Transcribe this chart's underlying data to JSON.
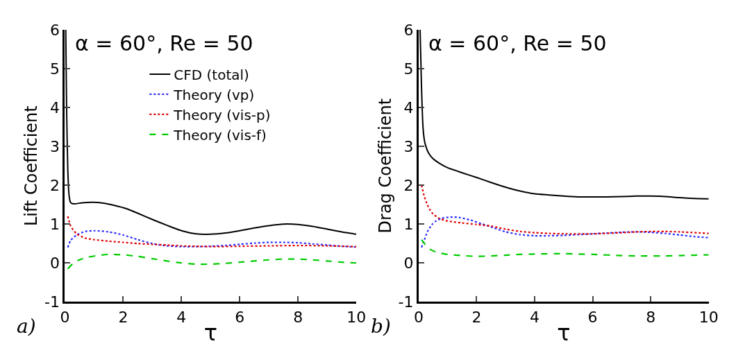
{
  "chart_data": [
    {
      "type": "line",
      "xlabel": "τ",
      "ylabel": "Lift Coefficient",
      "xlim": [
        0,
        10
      ],
      "ylim": [
        -1,
        6
      ],
      "xticks": [
        0,
        2,
        4,
        6,
        8,
        10
      ],
      "yticks": [
        -1,
        0,
        1,
        2,
        3,
        4,
        5,
        6
      ],
      "legend": "top",
      "marker": "none",
      "annotations": [
        "α = 60°, Re = 50",
        "a)"
      ],
      "series": [
        {
          "name": "CFD (total)",
          "color": "#000000",
          "line_style": "solid",
          "x": [
            0.03,
            0.06,
            0.1,
            0.15,
            0.2,
            0.3,
            0.6,
            1,
            1.4,
            1.7,
            2.1,
            2.5,
            3,
            3.5,
            4,
            4.5,
            5,
            5.5,
            6,
            6.5,
            7,
            7.5,
            8,
            8.5,
            9,
            9.5,
            10
          ],
          "values": [
            6,
            4,
            2.4,
            1.7,
            1.55,
            1.52,
            1.55,
            1.56,
            1.53,
            1.48,
            1.4,
            1.28,
            1.12,
            0.97,
            0.83,
            0.75,
            0.74,
            0.77,
            0.83,
            0.9,
            0.96,
            1.0,
            0.99,
            0.94,
            0.87,
            0.8,
            0.74
          ]
        },
        {
          "name": "Theory (vp)",
          "color": "#2b2bff",
          "line_style": "dotted",
          "x": [
            0.1,
            0.2,
            0.4,
            0.7,
            1,
            1.5,
            2,
            2.5,
            3,
            3.5,
            4,
            4.5,
            5,
            5.5,
            6,
            6.5,
            7,
            7.5,
            8,
            8.5,
            9,
            9.5,
            10
          ],
          "values": [
            0.4,
            0.58,
            0.72,
            0.81,
            0.83,
            0.8,
            0.72,
            0.6,
            0.5,
            0.44,
            0.42,
            0.42,
            0.43,
            0.45,
            0.48,
            0.51,
            0.53,
            0.53,
            0.52,
            0.49,
            0.46,
            0.43,
            0.41
          ]
        },
        {
          "name": "Theory (vis-p)",
          "color": "#e00000",
          "line_style": "dotted",
          "x": [
            0.1,
            0.2,
            0.4,
            0.7,
            1,
            1.5,
            2,
            2.5,
            3,
            3.5,
            4,
            5,
            6,
            7,
            8,
            9,
            10
          ],
          "values": [
            1.2,
            0.95,
            0.75,
            0.64,
            0.6,
            0.56,
            0.53,
            0.5,
            0.48,
            0.46,
            0.44,
            0.42,
            0.43,
            0.44,
            0.45,
            0.44,
            0.42
          ]
        },
        {
          "name": "Theory (vis-f)",
          "color": "#00cc00",
          "line_style": "dashed",
          "x": [
            0.1,
            0.3,
            0.5,
            0.8,
            1.2,
            1.5,
            2,
            2.5,
            3,
            3.5,
            4,
            4.5,
            5,
            5.5,
            6,
            6.5,
            7,
            7.5,
            8,
            8.5,
            9,
            9.5,
            10
          ],
          "values": [
            -0.15,
            0.0,
            0.08,
            0.15,
            0.2,
            0.22,
            0.21,
            0.17,
            0.11,
            0.05,
            0.0,
            -0.03,
            -0.03,
            -0.01,
            0.02,
            0.05,
            0.08,
            0.1,
            0.1,
            0.08,
            0.05,
            0.02,
            0.0
          ]
        }
      ]
    },
    {
      "type": "line",
      "xlabel": "τ",
      "ylabel": "Drag Coefficient",
      "xlim": [
        0,
        10
      ],
      "ylim": [
        -1,
        6
      ],
      "xticks": [
        0,
        2,
        4,
        6,
        8,
        10
      ],
      "yticks": [
        -1,
        0,
        1,
        2,
        3,
        4,
        5,
        6
      ],
      "marker": "none",
      "annotations": [
        "α = 60°, Re = 50",
        "b)"
      ],
      "series": [
        {
          "color": "#000000",
          "line_style": "solid",
          "x": [
            0.05,
            0.1,
            0.15,
            0.2,
            0.25,
            0.35,
            0.5,
            0.75,
            1,
            1.5,
            2,
            2.5,
            3,
            3.5,
            4,
            4.5,
            5,
            5.5,
            6,
            6.5,
            7,
            7.5,
            8,
            8.5,
            9,
            9.5,
            10
          ],
          "values": [
            6,
            4.5,
            3.5,
            3.15,
            3.0,
            2.82,
            2.68,
            2.55,
            2.45,
            2.32,
            2.2,
            2.07,
            1.95,
            1.85,
            1.78,
            1.75,
            1.72,
            1.7,
            1.7,
            1.7,
            1.71,
            1.72,
            1.72,
            1.71,
            1.68,
            1.66,
            1.65
          ]
        },
        {
          "color": "#2b2bff",
          "line_style": "dotted",
          "x": [
            0.1,
            0.2,
            0.3,
            0.45,
            0.6,
            0.8,
            1.1,
            1.4,
            1.8,
            2.2,
            2.6,
            3,
            3.5,
            4,
            4.5,
            5,
            5.5,
            6,
            6.5,
            7,
            7.5,
            8,
            8.5,
            9,
            9.5,
            10
          ],
          "values": [
            0.4,
            0.6,
            0.8,
            0.98,
            1.08,
            1.15,
            1.18,
            1.17,
            1.1,
            1.0,
            0.9,
            0.8,
            0.73,
            0.7,
            0.7,
            0.71,
            0.73,
            0.75,
            0.77,
            0.79,
            0.8,
            0.79,
            0.76,
            0.72,
            0.68,
            0.65
          ]
        },
        {
          "color": "#e00000",
          "line_style": "dotted",
          "x": [
            0.1,
            0.2,
            0.3,
            0.45,
            0.7,
            1,
            1.5,
            2,
            2.5,
            3,
            3.5,
            4,
            4.5,
            5,
            6,
            7,
            7.5,
            8,
            8.5,
            9,
            10
          ],
          "values": [
            2.0,
            1.7,
            1.5,
            1.3,
            1.15,
            1.08,
            1.03,
            0.99,
            0.95,
            0.87,
            0.81,
            0.78,
            0.76,
            0.75,
            0.75,
            0.78,
            0.8,
            0.81,
            0.81,
            0.8,
            0.76
          ]
        },
        {
          "color": "#00cc00",
          "line_style": "dashed",
          "x": [
            0.1,
            0.2,
            0.4,
            0.6,
            1,
            1.5,
            2,
            2.5,
            3,
            3.5,
            4,
            5,
            5.5,
            6,
            7,
            7.5,
            8,
            8.5,
            9,
            9.5,
            10
          ],
          "values": [
            0.6,
            0.5,
            0.35,
            0.28,
            0.22,
            0.19,
            0.17,
            0.18,
            0.2,
            0.22,
            0.23,
            0.24,
            0.23,
            0.22,
            0.19,
            0.18,
            0.18,
            0.18,
            0.19,
            0.2,
            0.21
          ]
        }
      ]
    }
  ]
}
